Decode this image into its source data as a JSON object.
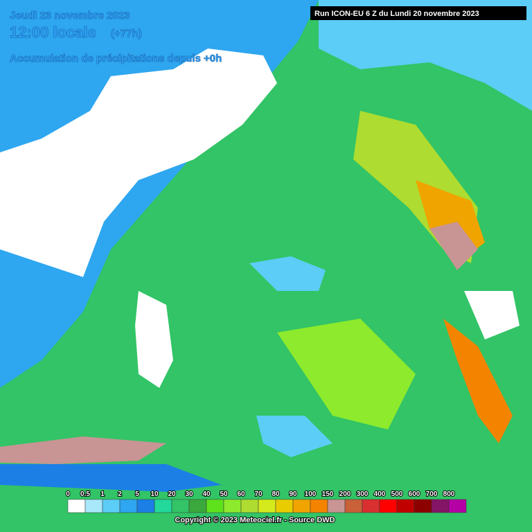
{
  "header": {
    "date": "Jeudi 23 novembre 2023",
    "time": "12:00 locale",
    "offset": "(+77h)",
    "subtitle": "Accumulation de précipitations depuis +0h",
    "run": "Run ICON-EU 6 Z du Lundi 20 novembre 2023"
  },
  "legend": {
    "items": [
      {
        "label": "0",
        "color": "#ffffff"
      },
      {
        "label": "0.5",
        "color": "#a8e8fa"
      },
      {
        "label": "1",
        "color": "#5ccdf6"
      },
      {
        "label": "2",
        "color": "#2ea6f0"
      },
      {
        "label": "5",
        "color": "#1c7fe6"
      },
      {
        "label": "10",
        "color": "#22d89a"
      },
      {
        "label": "20",
        "color": "#32c466"
      },
      {
        "label": "30",
        "color": "#3aa83c"
      },
      {
        "label": "40",
        "color": "#5ee21c"
      },
      {
        "label": "50",
        "color": "#8eea2c"
      },
      {
        "label": "60",
        "color": "#aedc30"
      },
      {
        "label": "70",
        "color": "#d4ea1c"
      },
      {
        "label": "80",
        "color": "#e8cc00"
      },
      {
        "label": "90",
        "color": "#f0a400"
      },
      {
        "label": "100",
        "color": "#f48400"
      },
      {
        "label": "150",
        "color": "#c89494"
      },
      {
        "label": "200",
        "color": "#c86038"
      },
      {
        "label": "300",
        "color": "#d83030"
      },
      {
        "label": "400",
        "color": "#ff0000"
      },
      {
        "label": "500",
        "color": "#c00000"
      },
      {
        "label": "600",
        "color": "#8c0000"
      },
      {
        "label": "700",
        "color": "#841466"
      },
      {
        "label": "800",
        "color": "#b400a4"
      }
    ]
  },
  "footer": {
    "copyright": "Copyright © 2023 Meteociel.fr - Source DWD"
  }
}
